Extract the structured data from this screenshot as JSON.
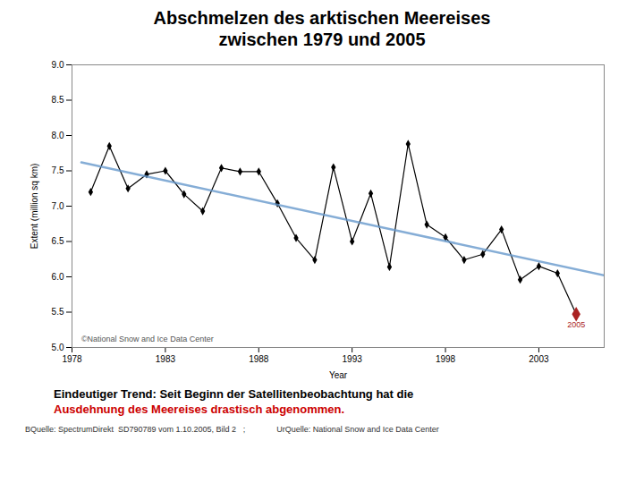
{
  "chart_data": {
    "type": "line",
    "title": "Abschmelzen des arktischen Meereises\nzwischen 1979 und 2005",
    "subtitle": [
      {
        "text": "Eindeutiger Trend: Seit Beginn der Satellitenbeobachtung hat die",
        "color": "#000000"
      },
      {
        "text": "Ausdehnung des Meereises drastisch abgenommen.",
        "color": "#cc0000"
      }
    ],
    "caption": "BQuelle: SpectrumDirekt  SD790789 vom 1.10.2005, Bild 2   ;              UrQuelle: National Snow and Ice Data Center",
    "xlabel": "Year",
    "ylabel": "Extent (million sq km)",
    "x": [
      1979,
      1980,
      1981,
      1982,
      1983,
      1984,
      1985,
      1986,
      1987,
      1988,
      1989,
      1990,
      1991,
      1992,
      1993,
      1994,
      1995,
      1996,
      1997,
      1998,
      1999,
      2000,
      2001,
      2002,
      2003,
      2004,
      2005
    ],
    "series": [
      {
        "values": [
          7.2,
          7.85,
          7.25,
          7.45,
          7.5,
          7.17,
          6.93,
          7.54,
          7.49,
          7.49,
          7.04,
          6.55,
          6.24,
          7.55,
          6.5,
          7.18,
          6.14,
          7.88,
          6.74,
          6.56,
          6.24,
          6.32,
          6.67,
          5.96,
          6.15,
          6.05,
          5.47
        ],
        "color": "#000000",
        "marker": "diamond",
        "colors": [
          "#000000",
          "#000000",
          "#000000",
          "#000000",
          "#000000",
          "#000000",
          "#000000",
          "#000000",
          "#000000",
          "#000000",
          "#000000",
          "#000000",
          "#000000",
          "#000000",
          "#000000",
          "#000000",
          "#000000",
          "#000000",
          "#000000",
          "#000000",
          "#000000",
          "#000000",
          "#000000",
          "#000000",
          "#000000",
          "#000000",
          "#aa2222"
        ]
      },
      {
        "x": [
          1978.5,
          2006.5
        ],
        "values": [
          7.62,
          6.02
        ],
        "color": "#6699cc"
      }
    ],
    "xlim": [
      1978,
      2006.5
    ],
    "ylim": [
      5.0,
      9.0
    ],
    "xticks": [
      1978,
      1983,
      1988,
      1993,
      1998,
      2003
    ],
    "yticks": [
      {
        "value": 5.0,
        "label": "5.0"
      },
      5.5,
      {
        "value": 6.0,
        "label": "6.0"
      },
      6.5,
      {
        "value": 7.0,
        "label": "7.0"
      },
      7.5,
      {
        "value": 8.0,
        "label": "8.0"
      },
      8.5,
      {
        "value": 9.0,
        "label": "9.0"
      }
    ],
    "grid": false,
    "annotations": [
      {
        "text": "2005",
        "x": 2005,
        "y": 5.47,
        "color": "#aa2222"
      },
      {
        "text": "©National Snow and Ice Data Center",
        "x": 1978.5,
        "y": 5.08,
        "color": "#555555"
      }
    ]
  }
}
